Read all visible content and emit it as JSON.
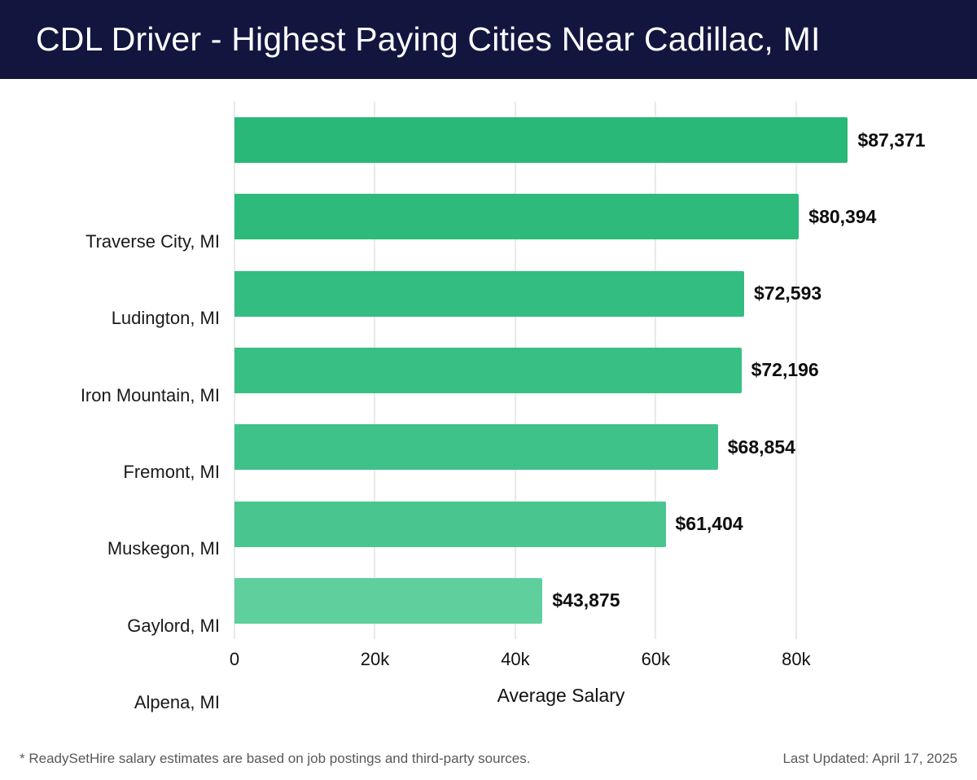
{
  "header": {
    "title": "CDL Driver - Highest Paying Cities Near Cadillac, MI",
    "background_color": "#12163f",
    "text_color": "#ffffff"
  },
  "chart_data": {
    "type": "bar",
    "orientation": "horizontal",
    "title": "CDL Driver - Highest Paying Cities Near Cadillac, MI",
    "categories": [
      "Traverse City, MI",
      "Ludington, MI",
      "Iron Mountain, MI",
      "Fremont, MI",
      "Muskegon, MI",
      "Gaylord, MI",
      "Alpena, MI"
    ],
    "values": [
      87371,
      80394,
      72593,
      72196,
      68854,
      61404,
      43875
    ],
    "value_labels": [
      "$87,371",
      "$80,394",
      "$72,593",
      "$72,196",
      "$68,854",
      "$61,404",
      "$43,875"
    ],
    "bar_colors": [
      "#29b877",
      "#2dba7b",
      "#34bd80",
      "#38bf83",
      "#3fc289",
      "#49c590",
      "#5ecf9d"
    ],
    "xlabel": "Average Salary",
    "ylabel": "",
    "x_ticks": [
      0,
      20000,
      40000,
      60000,
      80000
    ],
    "x_tick_labels": [
      "0",
      "20k",
      "40k",
      "60k",
      "80k"
    ],
    "xlim": [
      0,
      93000
    ],
    "grid": true,
    "gridline_color": "#e9e9e9",
    "legend": "none"
  },
  "footer": {
    "note": "* ReadySetHire salary estimates are based on job postings and third-party sources.",
    "last_updated": "Last Updated: April 17, 2025"
  }
}
